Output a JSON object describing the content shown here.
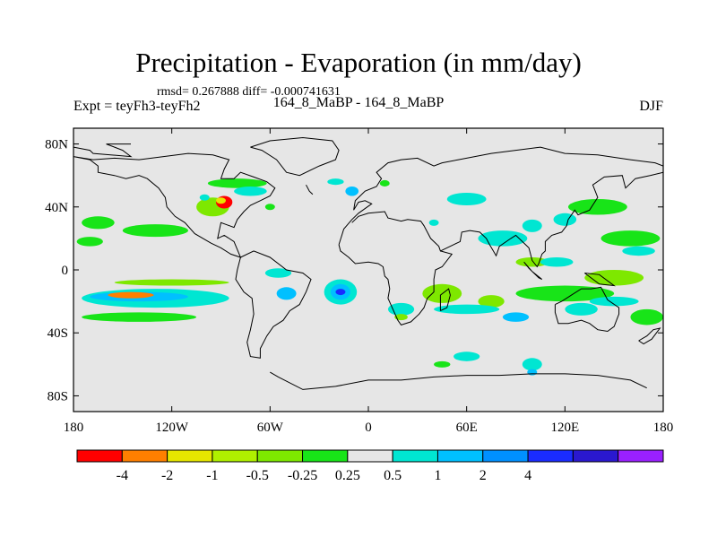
{
  "chart_data": {
    "type": "heatmap",
    "title": "Precipitation - Evaporation (in mm/day)",
    "stats_line": "rmsd= 0.267888 diff= -0.000741631",
    "left_label": "Expt = teyFh3-teyFh2",
    "center_label": "164_8_MaBP - 164_8_MaBP",
    "right_label": "DJF",
    "x_ticks": [
      {
        "lon": -180,
        "label": "180"
      },
      {
        "lon": -120,
        "label": "120W"
      },
      {
        "lon": -60,
        "label": "60W"
      },
      {
        "lon": 0,
        "label": "0"
      },
      {
        "lon": 60,
        "label": "60E"
      },
      {
        "lon": 120,
        "label": "120E"
      },
      {
        "lon": 180,
        "label": "180"
      }
    ],
    "y_ticks": [
      {
        "lat": 80,
        "label": "80N"
      },
      {
        "lat": 40,
        "label": "40N"
      },
      {
        "lat": 0,
        "label": "0"
      },
      {
        "lat": -40,
        "label": "40S"
      },
      {
        "lat": -80,
        "label": "80S"
      }
    ],
    "xlim": [
      -180,
      180
    ],
    "ylim": [
      -90,
      90
    ],
    "colorbar": {
      "colors": [
        "#ff0000",
        "#ff7f00",
        "#e6e600",
        "#b0f000",
        "#7ee800",
        "#18e418",
        "#e6e6e6",
        "#00e6d2",
        "#00c0ff",
        "#0090ff",
        "#1a2cff",
        "#2a18cf",
        "#9a20ff"
      ],
      "labels": [
        "-4",
        "-2",
        "-1",
        "-0.5",
        "-0.25",
        "0.25",
        "0.5",
        "1",
        "2",
        "4"
      ]
    },
    "regions": [
      {
        "lon": -165,
        "lat": 30,
        "rx": 10,
        "ry": 4,
        "c": 5
      },
      {
        "lon": -130,
        "lat": 25,
        "rx": 20,
        "ry": 4,
        "c": 5
      },
      {
        "lon": -170,
        "lat": 18,
        "rx": 8,
        "ry": 3,
        "c": 5
      },
      {
        "lon": -130,
        "lat": -18,
        "rx": 45,
        "ry": 6,
        "c": 7
      },
      {
        "lon": -140,
        "lat": -17,
        "rx": 30,
        "ry": 3,
        "c": 8
      },
      {
        "lon": -145,
        "lat": -16,
        "rx": 14,
        "ry": 2,
        "c": 1
      },
      {
        "lon": -140,
        "lat": -30,
        "rx": 35,
        "ry": 3,
        "c": 5
      },
      {
        "lon": -120,
        "lat": -8,
        "rx": 35,
        "ry": 2,
        "c": 4
      },
      {
        "lon": -95,
        "lat": 40,
        "rx": 10,
        "ry": 6,
        "c": 4
      },
      {
        "lon": -88,
        "lat": 43,
        "rx": 5,
        "ry": 4,
        "c": 0
      },
      {
        "lon": -90,
        "lat": 44,
        "rx": 3,
        "ry": 2,
        "c": 2
      },
      {
        "lon": -80,
        "lat": 55,
        "rx": 18,
        "ry": 3,
        "c": 5
      },
      {
        "lon": -72,
        "lat": 50,
        "rx": 10,
        "ry": 3,
        "c": 7
      },
      {
        "lon": -55,
        "lat": -2,
        "rx": 8,
        "ry": 3,
        "c": 7
      },
      {
        "lon": -50,
        "lat": -15,
        "rx": 6,
        "ry": 4,
        "c": 8
      },
      {
        "lon": -17,
        "lat": -14,
        "rx": 10,
        "ry": 8,
        "c": 7
      },
      {
        "lon": -17,
        "lat": -14,
        "rx": 6,
        "ry": 5,
        "c": 8
      },
      {
        "lon": -17,
        "lat": -14,
        "rx": 3,
        "ry": 2,
        "c": 10
      },
      {
        "lon": -10,
        "lat": 50,
        "rx": 4,
        "ry": 3,
        "c": 8
      },
      {
        "lon": -20,
        "lat": 56,
        "rx": 5,
        "ry": 2,
        "c": 7
      },
      {
        "lon": 60,
        "lat": 45,
        "rx": 12,
        "ry": 4,
        "c": 7
      },
      {
        "lon": 100,
        "lat": 28,
        "rx": 6,
        "ry": 4,
        "c": 7
      },
      {
        "lon": 82,
        "lat": 20,
        "rx": 15,
        "ry": 5,
        "c": 7
      },
      {
        "lon": 100,
        "lat": 5,
        "rx": 10,
        "ry": 3,
        "c": 4
      },
      {
        "lon": 115,
        "lat": 5,
        "rx": 10,
        "ry": 3,
        "c": 7
      },
      {
        "lon": 120,
        "lat": 32,
        "rx": 7,
        "ry": 4,
        "c": 7
      },
      {
        "lon": 140,
        "lat": 40,
        "rx": 18,
        "ry": 5,
        "c": 5
      },
      {
        "lon": 160,
        "lat": 20,
        "rx": 18,
        "ry": 5,
        "c": 5
      },
      {
        "lon": 165,
        "lat": 12,
        "rx": 10,
        "ry": 3,
        "c": 7
      },
      {
        "lon": 45,
        "lat": -15,
        "rx": 12,
        "ry": 6,
        "c": 4
      },
      {
        "lon": 75,
        "lat": -20,
        "rx": 8,
        "ry": 4,
        "c": 4
      },
      {
        "lon": 120,
        "lat": -15,
        "rx": 30,
        "ry": 5,
        "c": 5
      },
      {
        "lon": 60,
        "lat": -25,
        "rx": 20,
        "ry": 3,
        "c": 7
      },
      {
        "lon": 20,
        "lat": -25,
        "rx": 8,
        "ry": 4,
        "c": 7
      },
      {
        "lon": 90,
        "lat": -30,
        "rx": 8,
        "ry": 3,
        "c": 8
      },
      {
        "lon": 130,
        "lat": -25,
        "rx": 10,
        "ry": 4,
        "c": 7
      },
      {
        "lon": 170,
        "lat": -30,
        "rx": 10,
        "ry": 5,
        "c": 5
      },
      {
        "lon": 150,
        "lat": -5,
        "rx": 18,
        "ry": 5,
        "c": 4
      },
      {
        "lon": 150,
        "lat": -20,
        "rx": 15,
        "ry": 3,
        "c": 7
      },
      {
        "lon": 100,
        "lat": -60,
        "rx": 6,
        "ry": 4,
        "c": 7
      },
      {
        "lon": 60,
        "lat": -55,
        "rx": 8,
        "ry": 3,
        "c": 7
      },
      {
        "lon": 100,
        "lat": -65,
        "rx": 3,
        "ry": 2,
        "c": 8
      },
      {
        "lon": 45,
        "lat": -60,
        "rx": 5,
        "ry": 2,
        "c": 5
      },
      {
        "lon": -100,
        "lat": 46,
        "rx": 3,
        "ry": 2,
        "c": 7
      },
      {
        "lon": -60,
        "lat": 40,
        "rx": 3,
        "ry": 2,
        "c": 5
      },
      {
        "lon": 10,
        "lat": 55,
        "rx": 3,
        "ry": 2,
        "c": 5
      },
      {
        "lon": 40,
        "lat": 30,
        "rx": 3,
        "ry": 2,
        "c": 7
      },
      {
        "lon": 20,
        "lat": -30,
        "rx": 4,
        "ry": 2,
        "c": 4
      }
    ],
    "coast_paths": [
      [
        [
          -180,
          78
        ],
        [
          -170,
          76
        ],
        [
          -168,
          74
        ],
        [
          -145,
          72
        ],
        [
          -150,
          76
        ],
        [
          -160,
          80
        ],
        [
          -145,
          80
        ]
      ],
      [
        [
          -180,
          72
        ],
        [
          -170,
          70
        ],
        [
          -165,
          66
        ],
        [
          -165,
          62
        ],
        [
          -155,
          60
        ],
        [
          -148,
          58
        ],
        [
          -140,
          60
        ],
        [
          -135,
          58
        ],
        [
          -128,
          52
        ],
        [
          -124,
          46
        ],
        [
          -123,
          40
        ],
        [
          -118,
          34
        ],
        [
          -112,
          30
        ],
        [
          -106,
          23
        ],
        [
          -96,
          17
        ],
        [
          -90,
          14
        ],
        [
          -84,
          10
        ],
        [
          -78,
          8
        ],
        [
          -82,
          18
        ],
        [
          -88,
          22
        ],
        [
          -92,
          20
        ],
        [
          -90,
          30
        ],
        [
          -82,
          27
        ],
        [
          -80,
          32
        ],
        [
          -76,
          37
        ],
        [
          -72,
          41
        ],
        [
          -66,
          44
        ],
        [
          -60,
          47
        ],
        [
          -57,
          52
        ],
        [
          -62,
          56
        ],
        [
          -70,
          59
        ],
        [
          -78,
          62
        ],
        [
          -82,
          58
        ],
        [
          -90,
          58
        ],
        [
          -88,
          64
        ],
        [
          -85,
          70
        ],
        [
          -95,
          73
        ],
        [
          -110,
          74
        ],
        [
          -125,
          72
        ],
        [
          -140,
          70
        ],
        [
          -155,
          71
        ],
        [
          -168,
          70
        ],
        [
          -180,
          72
        ]
      ],
      [
        [
          -78,
          8
        ],
        [
          -80,
          0
        ],
        [
          -81,
          -6
        ],
        [
          -76,
          -14
        ],
        [
          -71,
          -18
        ],
        [
          -70,
          -28
        ],
        [
          -72,
          -38
        ],
        [
          -74,
          -46
        ],
        [
          -72,
          -55
        ],
        [
          -66,
          -56
        ],
        [
          -66,
          -50
        ],
        [
          -62,
          -42
        ],
        [
          -58,
          -36
        ],
        [
          -52,
          -32
        ],
        [
          -48,
          -26
        ],
        [
          -42,
          -22
        ],
        [
          -38,
          -14
        ],
        [
          -35,
          -6
        ],
        [
          -40,
          -2
        ],
        [
          -50,
          0
        ],
        [
          -60,
          8
        ],
        [
          -70,
          12
        ],
        [
          -78,
          8
        ]
      ],
      [
        [
          -72,
          78
        ],
        [
          -60,
          82
        ],
        [
          -40,
          84
        ],
        [
          -22,
          82
        ],
        [
          -18,
          76
        ],
        [
          -20,
          70
        ],
        [
          -30,
          66
        ],
        [
          -42,
          60
        ],
        [
          -50,
          62
        ],
        [
          -56,
          70
        ],
        [
          -65,
          76
        ],
        [
          -72,
          78
        ]
      ],
      [
        [
          -18,
          16
        ],
        [
          -15,
          26
        ],
        [
          -10,
          32
        ],
        [
          -6,
          36
        ],
        [
          2,
          42
        ],
        [
          -2,
          44
        ],
        [
          -6,
          43
        ],
        [
          -9,
          38
        ],
        [
          -8,
          44
        ],
        [
          -2,
          50
        ],
        [
          5,
          53
        ],
        [
          8,
          58
        ],
        [
          5,
          62
        ],
        [
          12,
          68
        ],
        [
          20,
          70
        ],
        [
          30,
          71
        ],
        [
          40,
          66
        ],
        [
          45,
          68
        ],
        [
          55,
          70
        ],
        [
          65,
          72
        ],
        [
          75,
          74
        ],
        [
          90,
          76
        ],
        [
          105,
          78
        ],
        [
          120,
          74
        ],
        [
          140,
          73
        ],
        [
          160,
          70
        ],
        [
          175,
          68
        ],
        [
          180,
          66
        ]
      ],
      [
        [
          180,
          62
        ],
        [
          172,
          60
        ],
        [
          163,
          58
        ],
        [
          157,
          52
        ],
        [
          155,
          60
        ],
        [
          144,
          59
        ],
        [
          137,
          54
        ],
        [
          140,
          46
        ],
        [
          135,
          38
        ],
        [
          128,
          35
        ],
        [
          126,
          38
        ],
        [
          122,
          32
        ],
        [
          121,
          28
        ],
        [
          118,
          24
        ],
        [
          112,
          22
        ],
        [
          108,
          18
        ],
        [
          108,
          12
        ],
        [
          106,
          10
        ],
        [
          104,
          4
        ],
        [
          103,
          2
        ],
        [
          100,
          6
        ],
        [
          98,
          14
        ],
        [
          94,
          18
        ],
        [
          90,
          22
        ],
        [
          87,
          20
        ],
        [
          80,
          15
        ],
        [
          78,
          9
        ],
        [
          74,
          16
        ],
        [
          72,
          20
        ],
        [
          68,
          24
        ],
        [
          62,
          25
        ],
        [
          57,
          24
        ],
        [
          56,
          18
        ],
        [
          52,
          16
        ],
        [
          44,
          12
        ],
        [
          43,
          15
        ],
        [
          38,
          20
        ],
        [
          34,
          28
        ],
        [
          32,
          31
        ],
        [
          24,
          32
        ],
        [
          20,
          31
        ],
        [
          12,
          33
        ],
        [
          10,
          37
        ],
        [
          0,
          36
        ],
        [
          -6,
          34
        ],
        [
          -10,
          30
        ]
      ],
      [
        [
          -18,
          16
        ],
        [
          -17,
          12
        ],
        [
          -12,
          8
        ],
        [
          -8,
          4
        ],
        [
          0,
          5
        ],
        [
          6,
          4
        ],
        [
          9,
          2
        ],
        [
          10,
          -4
        ],
        [
          12,
          -6
        ],
        [
          13,
          -12
        ],
        [
          12,
          -18
        ],
        [
          15,
          -25
        ],
        [
          18,
          -32
        ],
        [
          20,
          -35
        ],
        [
          26,
          -33
        ],
        [
          31,
          -28
        ],
        [
          34,
          -24
        ],
        [
          36,
          -18
        ],
        [
          40,
          -14
        ],
        [
          40,
          -6
        ],
        [
          41,
          0
        ],
        [
          45,
          2
        ],
        [
          51,
          10
        ],
        [
          44,
          12
        ]
      ],
      [
        [
          44,
          -26
        ],
        [
          48,
          -24
        ],
        [
          50,
          -16
        ],
        [
          49,
          -12
        ],
        [
          44,
          -16
        ],
        [
          44,
          -26
        ]
      ],
      [
        [
          114,
          -22
        ],
        [
          114,
          -27
        ],
        [
          116,
          -34
        ],
        [
          122,
          -34
        ],
        [
          130,
          -32
        ],
        [
          135,
          -34
        ],
        [
          140,
          -38
        ],
        [
          146,
          -39
        ],
        [
          150,
          -36
        ],
        [
          153,
          -28
        ],
        [
          153,
          -24
        ],
        [
          146,
          -19
        ],
        [
          142,
          -11
        ],
        [
          136,
          -12
        ],
        [
          130,
          -12
        ],
        [
          124,
          -16
        ],
        [
          118,
          -20
        ],
        [
          114,
          -22
        ]
      ],
      [
        [
          95,
          5
        ],
        [
          100,
          -1
        ],
        [
          106,
          -6
        ],
        [
          104,
          -5
        ],
        [
          98,
          1
        ],
        [
          95,
          5
        ]
      ],
      [
        [
          132,
          -2
        ],
        [
          141,
          -3
        ],
        [
          150,
          -10
        ],
        [
          141,
          -9
        ],
        [
          132,
          -2
        ]
      ],
      [
        [
          -60,
          -65
        ],
        [
          -55,
          -68
        ],
        [
          -40,
          -76
        ],
        [
          -20,
          -74
        ],
        [
          0,
          -70
        ],
        [
          20,
          -70
        ],
        [
          40,
          -68
        ],
        [
          60,
          -67
        ],
        [
          80,
          -67
        ],
        [
          100,
          -66
        ],
        [
          120,
          -66
        ],
        [
          140,
          -67
        ],
        [
          160,
          -70
        ],
        [
          170,
          -75
        ]
      ],
      [
        [
          -38,
          54
        ],
        [
          -36,
          50
        ],
        [
          -34,
          48
        ]
      ],
      [
        [
          165,
          -45
        ],
        [
          170,
          -42
        ],
        [
          174,
          -38
        ],
        [
          178,
          -37
        ],
        [
          173,
          -44
        ],
        [
          168,
          -47
        ],
        [
          165,
          -45
        ]
      ]
    ]
  }
}
